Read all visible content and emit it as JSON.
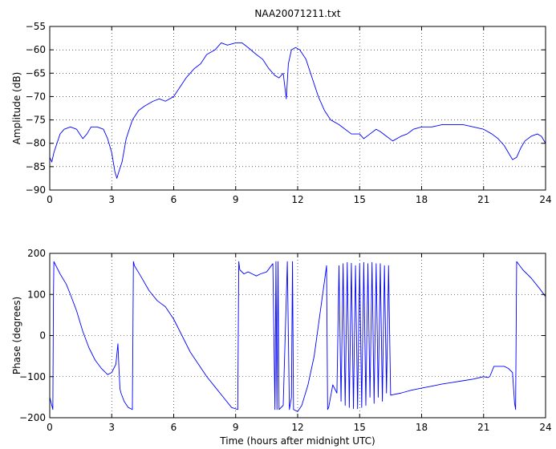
{
  "title": "NAA20071211.txt",
  "chart_data": [
    {
      "type": "line",
      "title": "NAA20071211.txt",
      "xlabel": "",
      "ylabel": "Amplitude (dB)",
      "xlim": [
        0,
        24
      ],
      "ylim": [
        -90,
        -55
      ],
      "xticks": [
        0,
        3,
        6,
        9,
        12,
        15,
        18,
        21,
        24
      ],
      "yticks": [
        -90,
        -85,
        -80,
        -75,
        -70,
        -65,
        -60,
        -55
      ],
      "grid": true,
      "color": "#0000ff",
      "x": [
        0,
        0.1,
        0.2,
        0.35,
        0.5,
        0.7,
        1.0,
        1.3,
        1.6,
        1.8,
        2.0,
        2.3,
        2.6,
        2.8,
        3.0,
        3.15,
        3.25,
        3.35,
        3.5,
        3.7,
        4.0,
        4.3,
        4.6,
        5.0,
        5.3,
        5.6,
        6.0,
        6.3,
        6.6,
        7.0,
        7.3,
        7.6,
        8.0,
        8.3,
        8.6,
        9.0,
        9.3,
        9.6,
        10.0,
        10.3,
        10.6,
        10.9,
        11.1,
        11.3,
        11.45,
        11.55,
        11.7,
        11.9,
        12.1,
        12.4,
        12.7,
        13.0,
        13.3,
        13.6,
        14.0,
        14.3,
        14.6,
        15.0,
        15.2,
        15.5,
        15.8,
        16.0,
        16.3,
        16.6,
        17.0,
        17.3,
        17.6,
        18.0,
        18.5,
        19.0,
        19.5,
        20.0,
        20.5,
        21.0,
        21.4,
        21.7,
        22.0,
        22.2,
        22.4,
        22.6,
        22.8,
        23.0,
        23.3,
        23.6,
        23.8,
        24.0
      ],
      "y": [
        -83,
        -84,
        -82,
        -80,
        -78,
        -77,
        -76.5,
        -77,
        -79,
        -78,
        -76.5,
        -76.5,
        -77,
        -79,
        -82,
        -86,
        -87.5,
        -86,
        -84,
        -79,
        -75,
        -73,
        -72,
        -71,
        -70.5,
        -71,
        -70,
        -68,
        -66,
        -64,
        -63,
        -61,
        -60,
        -58.5,
        -59,
        -58.5,
        -58.5,
        -59.5,
        -61,
        -62,
        -64,
        -65.5,
        -66,
        -65,
        -70.5,
        -63,
        -60,
        -59.5,
        -60,
        -62,
        -66,
        -70,
        -73,
        -75,
        -76,
        -77,
        -78,
        -78,
        -79,
        -78,
        -77,
        -77.5,
        -78.5,
        -79.5,
        -78.5,
        -78,
        -77,
        -76.5,
        -76.5,
        -76,
        -76,
        -76,
        -76.5,
        -77,
        -78,
        -79,
        -80.5,
        -82,
        -83.5,
        -83,
        -81,
        -79.5,
        -78.5,
        -78,
        -78.5,
        -80
      ]
    },
    {
      "type": "line",
      "title": "",
      "xlabel": "Time (hours after midnight UTC)",
      "ylabel": "Phase (degrees)",
      "xlim": [
        0,
        24
      ],
      "ylim": [
        -200,
        200
      ],
      "xticks": [
        0,
        3,
        6,
        9,
        12,
        15,
        18,
        21,
        24
      ],
      "yticks": [
        -200,
        -100,
        0,
        100,
        200
      ],
      "grid": true,
      "color": "#0000ff",
      "x": [
        0,
        0.15,
        0.18,
        0.2,
        0.3,
        0.5,
        0.8,
        1.0,
        1.3,
        1.6,
        1.9,
        2.2,
        2.5,
        2.8,
        3.0,
        3.2,
        3.3,
        3.35,
        3.4,
        3.45,
        3.6,
        3.8,
        4.0,
        4.05,
        4.1,
        4.4,
        4.8,
        5.2,
        5.6,
        6.0,
        6.4,
        6.8,
        7.2,
        7.6,
        8.0,
        8.4,
        8.8,
        9.1,
        9.15,
        9.2,
        9.4,
        9.6,
        9.8,
        10.0,
        10.2,
        10.5,
        10.8,
        10.9,
        10.95,
        11.0,
        11.05,
        11.1,
        11.3,
        11.5,
        11.6,
        11.7,
        11.75,
        11.8,
        12.0,
        12.2,
        12.5,
        12.8,
        13.1,
        13.4,
        13.45,
        13.5,
        13.7,
        13.9,
        14.0,
        14.1,
        14.2,
        14.3,
        14.4,
        14.5,
        14.6,
        14.7,
        14.8,
        14.9,
        15.0,
        15.1,
        15.2,
        15.3,
        15.4,
        15.5,
        15.6,
        15.7,
        15.8,
        15.9,
        16.0,
        16.1,
        16.2,
        16.3,
        16.4,
        16.5,
        17.0,
        17.5,
        18.0,
        18.5,
        19.0,
        19.5,
        20.0,
        20.5,
        21.0,
        21.2,
        21.3,
        21.5,
        22.0,
        22.2,
        22.4,
        22.5,
        22.55,
        22.6,
        22.9,
        23.3,
        23.7,
        24.0
      ],
      "y": [
        -150,
        -180,
        100,
        180,
        170,
        150,
        125,
        100,
        60,
        10,
        -30,
        -60,
        -80,
        -95,
        -90,
        -70,
        -20,
        -80,
        -130,
        -140,
        -160,
        -175,
        -180,
        180,
        170,
        145,
        110,
        85,
        70,
        40,
        0,
        -40,
        -70,
        -100,
        -125,
        -150,
        -175,
        -180,
        180,
        160,
        150,
        155,
        150,
        145,
        150,
        155,
        175,
        -180,
        180,
        -180,
        180,
        -180,
        -170,
        180,
        -180,
        -150,
        180,
        -180,
        -185,
        -170,
        -120,
        -50,
        60,
        170,
        -180,
        -175,
        -120,
        -140,
        170,
        -160,
        175,
        -170,
        178,
        -175,
        176,
        -178,
        170,
        -178,
        175,
        -175,
        178,
        -170,
        175,
        -150,
        178,
        -165,
        175,
        -150,
        175,
        -160,
        170,
        -140,
        170,
        -145,
        -140,
        -133,
        -128,
        -123,
        -118,
        -114,
        -110,
        -106,
        -100,
        -102,
        -100,
        -75,
        -75,
        -80,
        -90,
        -165,
        -180,
        180,
        160,
        140,
        115,
        95
      ]
    }
  ]
}
